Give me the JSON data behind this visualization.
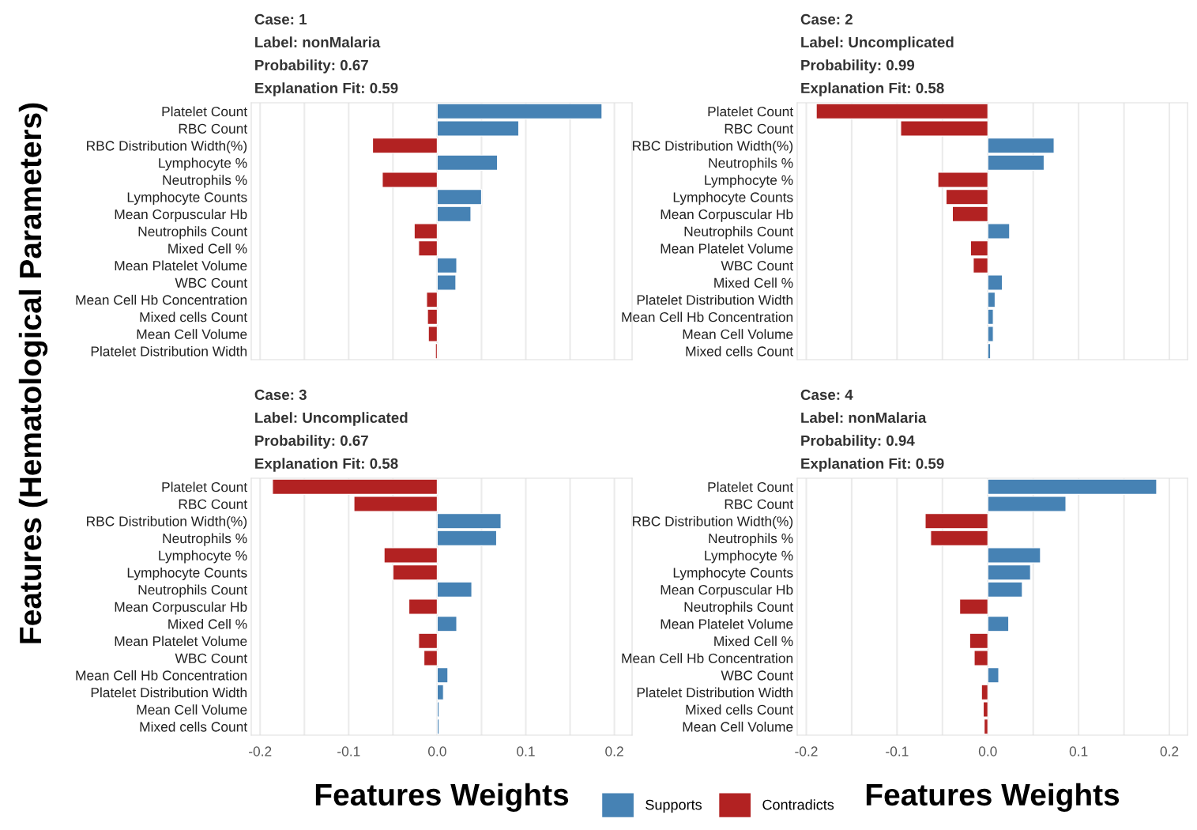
{
  "chart_data": [
    {
      "type": "bar",
      "orientation": "horizontal",
      "title": "Case: 1",
      "annotations": [
        "Label: nonMalaria",
        "Probability: 0.67",
        "Explanation Fit: 0.59"
      ],
      "ylabel": "Features (Hematological Parameters)",
      "tick_labels": "y",
      "grid": "x",
      "legend": "bottom",
      "categories": [
        "Platelet Count",
        "RBC Count",
        "RBC Distribution Width(%)",
        "Lymphocyte %",
        "Neutrophils %",
        "Lymphocyte Counts",
        "Mean Corpuscular Hb",
        "Neutrophils Count",
        "Mixed Cell %",
        "Mean Platelet Volume",
        "WBC Count",
        "Mean Cell Hb Concentration",
        "Mixed cells Count",
        "Mean Cell Volume",
        "Platelet Distribution Width"
      ],
      "series": [
        {
          "name": "Supports",
          "color": "#4682b4",
          "values": [
            0.186,
            0.092,
            null,
            0.068,
            null,
            0.05,
            0.038,
            null,
            null,
            0.022,
            0.021,
            null,
            null,
            null,
            null
          ]
        },
        {
          "name": "Contradicts",
          "color": "#b22222",
          "values": [
            null,
            null,
            -0.073,
            null,
            -0.062,
            null,
            null,
            -0.026,
            -0.021,
            null,
            null,
            -0.012,
            -0.011,
            -0.01,
            -0.002
          ]
        }
      ],
      "xlim": [
        -0.21,
        0.22
      ],
      "xticks": [
        -0.2,
        {
          "value": -0.15,
          "label": null
        },
        -0.1,
        {
          "value": -0.05,
          "label": null
        },
        0,
        {
          "value": 0.05,
          "label": null
        },
        0.1,
        {
          "value": 0.15,
          "label": null
        },
        0.2
      ]
    },
    {
      "type": "bar",
      "orientation": "horizontal",
      "title": "Case: 2",
      "annotations": [
        "Label: Uncomplicated",
        "Probability: 0.99",
        "Explanation Fit: 0.58"
      ],
      "tick_labels": "y",
      "grid": "x",
      "categories": [
        "Platelet Count",
        "RBC Count",
        "RBC Distribution Width(%)",
        "Neutrophils %",
        "Lymphocyte %",
        "Lymphocyte Counts",
        "Mean Corpuscular Hb",
        "Neutrophils Count",
        "Mean Platelet Volume",
        "WBC Count",
        "Mixed Cell %",
        "Platelet Distribution Width",
        "Mean Cell Hb Concentration",
        "Mean Cell Volume",
        "Mixed cells Count"
      ],
      "series": [
        {
          "color": "#4682b4",
          "values": [
            null,
            null,
            0.073,
            0.062,
            null,
            null,
            null,
            0.024,
            null,
            null,
            0.016,
            0.008,
            0.006,
            0.006,
            0.003
          ]
        },
        {
          "color": "#b22222",
          "values": [
            -0.189,
            -0.096,
            null,
            null,
            -0.055,
            -0.046,
            -0.039,
            null,
            -0.019,
            -0.016,
            null,
            null,
            null,
            null,
            null
          ]
        }
      ],
      "xlim": [
        -0.21,
        0.22
      ],
      "xticks": [
        -0.2,
        {
          "value": -0.15,
          "label": null
        },
        -0.1,
        {
          "value": -0.05,
          "label": null
        },
        0,
        {
          "value": 0.05,
          "label": null
        },
        0.1,
        {
          "value": 0.15,
          "label": null
        },
        0.2
      ]
    },
    {
      "type": "bar",
      "orientation": "horizontal",
      "title": "Case: 3",
      "annotations": [
        "Label: Uncomplicated",
        "Probability: 0.67",
        "Explanation Fit: 0.58"
      ],
      "xlabel": "Features Weights",
      "grid": "x",
      "categories": [
        "Platelet Count",
        "RBC Count",
        "RBC Distribution Width(%)",
        "Neutrophils %",
        "Lymphocyte %",
        "Lymphocyte Counts",
        "Neutrophils Count",
        "Mean Corpuscular Hb",
        "Mixed Cell %",
        "Mean Platelet Volume",
        "WBC Count",
        "Mean Cell Hb Concentration",
        "Platelet Distribution Width",
        "Mean Cell Volume",
        "Mixed cells Count"
      ],
      "series": [
        {
          "color": "#4682b4",
          "values": [
            null,
            null,
            0.072,
            0.067,
            null,
            null,
            0.039,
            null,
            0.022,
            null,
            null,
            0.012,
            0.007,
            0.002,
            0.002
          ]
        },
        {
          "color": "#b22222",
          "values": [
            -0.186,
            -0.094,
            null,
            null,
            -0.06,
            -0.05,
            null,
            -0.032,
            null,
            -0.021,
            -0.015,
            null,
            null,
            null,
            null
          ]
        }
      ],
      "xlim": [
        -0.21,
        0.22
      ],
      "xticks": [
        -0.2,
        {
          "value": -0.15,
          "label": null
        },
        -0.1,
        {
          "value": -0.05,
          "label": null
        },
        {
          "value": 0,
          "label": "0.0"
        },
        {
          "value": 0.05,
          "label": null
        },
        0.1,
        {
          "value": 0.15,
          "label": null
        },
        0.2
      ]
    },
    {
      "type": "bar",
      "orientation": "horizontal",
      "title": "Case: 4",
      "annotations": [
        "Label: nonMalaria",
        "Probability: 0.94",
        "Explanation Fit: 0.59"
      ],
      "xlabel": "Features Weights",
      "grid": "x",
      "categories": [
        "Platelet Count",
        "RBC Count",
        "RBC Distribution Width(%)",
        "Neutrophils %",
        "Lymphocyte %",
        "Lymphocyte Counts",
        "Mean Corpuscular Hb",
        "Neutrophils Count",
        "Mean Platelet Volume",
        "Mixed Cell %",
        "Mean Cell Hb Concentration",
        "WBC Count",
        "Platelet Distribution Width",
        "Mixed cells Count",
        "Mean Cell Volume"
      ],
      "series": [
        {
          "color": "#4682b4",
          "values": [
            0.186,
            0.086,
            null,
            null,
            0.058,
            0.047,
            0.038,
            null,
            0.023,
            null,
            null,
            0.012,
            null,
            null,
            null
          ]
        },
        {
          "color": "#b22222",
          "values": [
            null,
            null,
            -0.069,
            -0.063,
            null,
            null,
            null,
            -0.031,
            null,
            -0.02,
            -0.015,
            null,
            -0.007,
            -0.005,
            -0.004
          ]
        }
      ],
      "xlim": [
        -0.21,
        0.22
      ],
      "xticks": [
        -0.2,
        {
          "value": -0.15,
          "label": null
        },
        -0.1,
        {
          "value": -0.05,
          "label": null
        },
        {
          "value": 0,
          "label": "0.0"
        },
        {
          "value": 0.05,
          "label": null
        },
        0.1,
        {
          "value": 0.15,
          "label": null
        },
        0.2
      ]
    }
  ]
}
